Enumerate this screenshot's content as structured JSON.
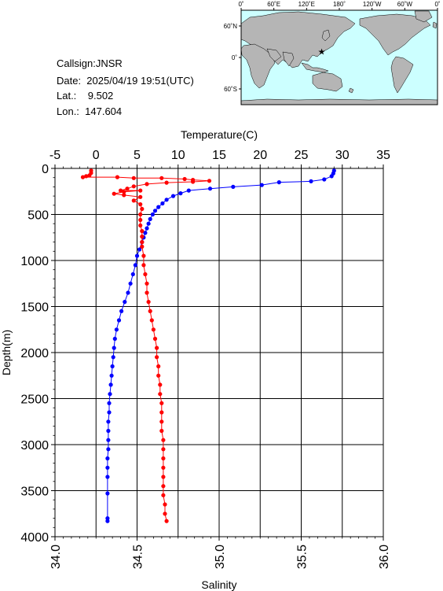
{
  "info": {
    "callsign": "Callsign:JNSR",
    "date": "Date:  2025/04/19 19:51(UTC)",
    "lat": "Lat.:    9.502",
    "lon": "Lon.:  147.604"
  },
  "map": {
    "top_ticks": [
      "0˚",
      "60˚E",
      "120˚E",
      "180˚",
      "120˚W",
      "60˚W",
      "0˚"
    ],
    "left_ticks": [
      "60˚N",
      "0˚",
      "60˚S"
    ],
    "station": {
      "lat": 9.502,
      "lon": 147.604
    },
    "colors": {
      "ocean": "#ccffff",
      "land": "#b5b5b5",
      "marker": "#ff0000"
    }
  },
  "chart_data": {
    "type": "scatter",
    "ylabel": "Depth(m)",
    "ylim": [
      4000,
      0
    ],
    "yticks": [
      0,
      500,
      1000,
      1500,
      2000,
      2500,
      3000,
      3500,
      4000
    ],
    "grid": true,
    "temperature_axis": {
      "label": "Temperature(C)",
      "position": "top",
      "range": [
        -5,
        35
      ],
      "ticks": [
        -5,
        0,
        5,
        10,
        15,
        20,
        25,
        30,
        35
      ]
    },
    "salinity_axis": {
      "label": "Salinity",
      "position": "bottom",
      "range": [
        34.0,
        36.0
      ],
      "ticks": [
        "34.0",
        "34.5",
        "35.0",
        "35.5",
        "36.0"
      ]
    },
    "series": [
      {
        "axis": "temperature",
        "color": "#0000ff",
        "points": [
          {
            "x": 29.0,
            "y": 25
          },
          {
            "x": 28.9,
            "y": 55
          },
          {
            "x": 28.7,
            "y": 85
          },
          {
            "x": 27.8,
            "y": 120
          },
          {
            "x": 26.2,
            "y": 140
          },
          {
            "x": 22.3,
            "y": 150
          },
          {
            "x": 20.2,
            "y": 180
          },
          {
            "x": 16.7,
            "y": 200
          },
          {
            "x": 13.9,
            "y": 220
          },
          {
            "x": 11.3,
            "y": 240
          },
          {
            "x": 10.3,
            "y": 270
          },
          {
            "x": 9.4,
            "y": 300
          },
          {
            "x": 8.6,
            "y": 340
          },
          {
            "x": 8.1,
            "y": 380
          },
          {
            "x": 7.6,
            "y": 420
          },
          {
            "x": 7.2,
            "y": 460
          },
          {
            "x": 6.9,
            "y": 500
          },
          {
            "x": 6.6,
            "y": 550
          },
          {
            "x": 6.4,
            "y": 600
          },
          {
            "x": 6.2,
            "y": 650
          },
          {
            "x": 6.0,
            "y": 700
          },
          {
            "x": 5.8,
            "y": 750
          },
          {
            "x": 5.6,
            "y": 800
          },
          {
            "x": 5.3,
            "y": 880
          },
          {
            "x": 5.0,
            "y": 950
          },
          {
            "x": 4.8,
            "y": 1050
          },
          {
            "x": 4.5,
            "y": 1150
          },
          {
            "x": 4.2,
            "y": 1250
          },
          {
            "x": 3.9,
            "y": 1350
          },
          {
            "x": 3.5,
            "y": 1450
          },
          {
            "x": 3.1,
            "y": 1550
          },
          {
            "x": 2.8,
            "y": 1650
          },
          {
            "x": 2.5,
            "y": 1750
          },
          {
            "x": 2.3,
            "y": 1850
          },
          {
            "x": 2.2,
            "y": 1950
          },
          {
            "x": 2.1,
            "y": 2050
          },
          {
            "x": 2.0,
            "y": 2150
          },
          {
            "x": 1.9,
            "y": 2250
          },
          {
            "x": 1.8,
            "y": 2350
          },
          {
            "x": 1.7,
            "y": 2450
          },
          {
            "x": 1.6,
            "y": 2550
          },
          {
            "x": 1.6,
            "y": 2650
          },
          {
            "x": 1.5,
            "y": 2750
          },
          {
            "x": 1.5,
            "y": 2850
          },
          {
            "x": 1.5,
            "y": 2950
          },
          {
            "x": 1.5,
            "y": 3050
          },
          {
            "x": 1.4,
            "y": 3150
          },
          {
            "x": 1.4,
            "y": 3250
          },
          {
            "x": 1.4,
            "y": 3350
          },
          {
            "x": 1.4,
            "y": 3530
          },
          {
            "x": 1.4,
            "y": 3800
          },
          {
            "x": 1.4,
            "y": 3830
          }
        ]
      },
      {
        "axis": "salinity",
        "color": "#ff0000",
        "points": [
          {
            "x": 34.22,
            "y": 25
          },
          {
            "x": 34.22,
            "y": 50
          },
          {
            "x": 34.21,
            "y": 75
          },
          {
            "x": 34.19,
            "y": 85
          },
          {
            "x": 34.17,
            "y": 95
          },
          {
            "x": 34.38,
            "y": 95
          },
          {
            "x": 34.48,
            "y": 105
          },
          {
            "x": 34.65,
            "y": 105
          },
          {
            "x": 34.79,
            "y": 115
          },
          {
            "x": 34.84,
            "y": 125
          },
          {
            "x": 34.94,
            "y": 135
          },
          {
            "x": 34.84,
            "y": 145
          },
          {
            "x": 34.68,
            "y": 155
          },
          {
            "x": 34.56,
            "y": 170
          },
          {
            "x": 34.48,
            "y": 195
          },
          {
            "x": 34.44,
            "y": 220
          },
          {
            "x": 34.4,
            "y": 240
          },
          {
            "x": 34.52,
            "y": 240
          },
          {
            "x": 34.42,
            "y": 255
          },
          {
            "x": 34.36,
            "y": 275
          },
          {
            "x": 34.42,
            "y": 290
          },
          {
            "x": 34.52,
            "y": 310
          },
          {
            "x": 34.48,
            "y": 350
          },
          {
            "x": 34.52,
            "y": 390
          },
          {
            "x": 34.53,
            "y": 440
          },
          {
            "x": 34.52,
            "y": 500
          },
          {
            "x": 34.52,
            "y": 560
          },
          {
            "x": 34.52,
            "y": 620
          },
          {
            "x": 34.53,
            "y": 680
          },
          {
            "x": 34.53,
            "y": 740
          },
          {
            "x": 34.53,
            "y": 800
          },
          {
            "x": 34.53,
            "y": 850
          },
          {
            "x": 34.54,
            "y": 950
          },
          {
            "x": 34.54,
            "y": 1050
          },
          {
            "x": 34.55,
            "y": 1150
          },
          {
            "x": 34.56,
            "y": 1250
          },
          {
            "x": 34.56,
            "y": 1350
          },
          {
            "x": 34.57,
            "y": 1450
          },
          {
            "x": 34.58,
            "y": 1550
          },
          {
            "x": 34.59,
            "y": 1650
          },
          {
            "x": 34.6,
            "y": 1750
          },
          {
            "x": 34.61,
            "y": 1850
          },
          {
            "x": 34.62,
            "y": 1950
          },
          {
            "x": 34.62,
            "y": 2050
          },
          {
            "x": 34.63,
            "y": 2150
          },
          {
            "x": 34.63,
            "y": 2250
          },
          {
            "x": 34.64,
            "y": 2350
          },
          {
            "x": 34.64,
            "y": 2450
          },
          {
            "x": 34.65,
            "y": 2550
          },
          {
            "x": 34.65,
            "y": 2650
          },
          {
            "x": 34.65,
            "y": 2750
          },
          {
            "x": 34.65,
            "y": 2850
          },
          {
            "x": 34.66,
            "y": 2950
          },
          {
            "x": 34.66,
            "y": 3050
          },
          {
            "x": 34.66,
            "y": 3150
          },
          {
            "x": 34.66,
            "y": 3250
          },
          {
            "x": 34.66,
            "y": 3350
          },
          {
            "x": 34.66,
            "y": 3450
          },
          {
            "x": 34.66,
            "y": 3550
          },
          {
            "x": 34.67,
            "y": 3650
          },
          {
            "x": 34.67,
            "y": 3750
          },
          {
            "x": 34.68,
            "y": 3830
          }
        ]
      }
    ]
  }
}
